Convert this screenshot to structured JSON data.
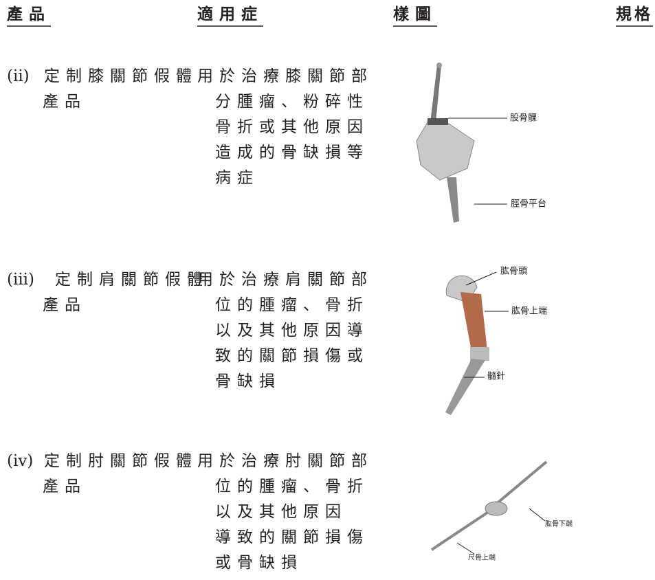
{
  "header": {
    "columns": [
      "產品",
      "適用症",
      "樣圖",
      "規格"
    ]
  },
  "rows": [
    {
      "number": "(ii)",
      "product": [
        "定制膝關節假體",
        "產品"
      ],
      "indication": [
        "用於治療膝關節部",
        "分腫瘤、粉碎性",
        "骨折或其他原因",
        "造成的骨缺損等",
        "病症"
      ],
      "figure_labels": [
        "股骨髁",
        "脛骨平台"
      ]
    },
    {
      "number": "(iii)",
      "product": [
        "定制肩關節假體",
        "產品"
      ],
      "indication": [
        "用於治療肩關節部",
        "位的腫瘤、骨折",
        "以及其他原因導",
        "致的關節損傷或",
        "骨缺損"
      ],
      "figure_labels": [
        "肱骨頭",
        "肱骨上端",
        "髓針"
      ]
    },
    {
      "number": "(iv)",
      "product": [
        "定制肘關節假體",
        "產品"
      ],
      "indication": [
        "用於治療肘關節部",
        "位的腫瘤、骨折",
        "以及其他原因",
        "導致的關節損傷",
        "或骨缺損"
      ],
      "figure_labels": [
        "肱骨下端",
        "尺骨上端"
      ]
    }
  ]
}
